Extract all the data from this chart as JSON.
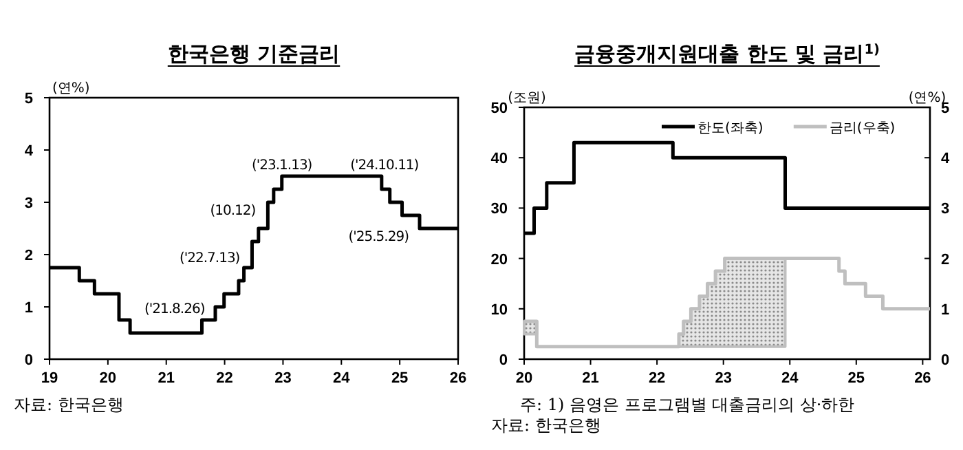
{
  "chart_data": [
    {
      "type": "step",
      "title": "한국은행 기준금리",
      "ylabel": "(연%)",
      "xlim": [
        19,
        26
      ],
      "xticks": [
        19,
        20,
        21,
        22,
        23,
        24,
        25,
        26
      ],
      "ylim": [
        0,
        5
      ],
      "yticks": [
        0,
        1,
        2,
        3,
        4,
        5
      ],
      "x": [
        19,
        19.51,
        19.77,
        20.19,
        20.38,
        21.61,
        21.84,
        21.99,
        22.24,
        22.33,
        22.47,
        22.58,
        22.74,
        22.84,
        22.98,
        24.69,
        24.83,
        25.04,
        25.34,
        26
      ],
      "series": [
        {
          "color": "#000000",
          "values": [
            1.75,
            1.5,
            1.25,
            0.75,
            0.5,
            0.75,
            1.0,
            1.25,
            1.5,
            1.75,
            2.25,
            2.5,
            3.0,
            3.25,
            3.5,
            3.25,
            3.0,
            2.75,
            2.5,
            2.5
          ]
        }
      ],
      "annotations": [
        {
          "text": "('21.8.26)",
          "x": 21.61,
          "y": 0.75
        },
        {
          "text": "('22.7.13)",
          "x": 22.47,
          "y": 2.25
        },
        {
          "text": "(10.12)",
          "x": 22.74,
          "y": 3.0
        },
        {
          "text": "('23.1.13)",
          "x": 22.98,
          "y": 3.5
        },
        {
          "text": "('24.10.11)",
          "x": 24.69,
          "y": 3.5
        },
        {
          "text": "('25.5.29)",
          "x": 25.34,
          "y": 2.5
        },
        "자료: 한국은행"
      ]
    },
    {
      "type": "step",
      "title": "금융중개지원대출 한도 및 금리$^{1)}$",
      "ylabel": "(조원)",
      "y2label": "(연%)",
      "xlim": [
        20,
        26.11
      ],
      "xticks": [
        20,
        21,
        22,
        23,
        24,
        25,
        26
      ],
      "ylim": [
        0,
        50
      ],
      "yticks": [
        0,
        10,
        20,
        30,
        40,
        50
      ],
      "y2lim": [
        0,
        5
      ],
      "y2ticks": [
        0,
        1,
        2,
        3,
        4,
        5
      ],
      "legend": "top right",
      "series": [
        {
          "name": "한도(좌축)",
          "color": "#000000",
          "x": [
            20,
            20.15,
            20.34,
            20.75,
            22.24,
            23.93,
            26.11
          ],
          "values": [
            25,
            30,
            35,
            43,
            40,
            30,
            30
          ]
        },
        {
          "name": "금리(우축)",
          "color": "#bfbfbf",
          "axis": "y2",
          "x": [
            20,
            20.19,
            22.33,
            22.33,
            22.4,
            22.51,
            22.64,
            22.76,
            22.88,
            23.02,
            23.93,
            24.74,
            24.83,
            25.14,
            25.4,
            26.11
          ],
          "values": [
            0.75,
            0.25,
            0.25,
            0.5,
            0.75,
            1.0,
            1.25,
            1.5,
            1.75,
            2.0,
            2.0,
            1.75,
            1.5,
            1.25,
            1.0,
            1.0
          ],
          "lower": [
            0.5,
            0.5,
            null,
            0.25,
            0.25,
            0.25,
            0.25,
            0.25,
            0.25,
            0.25,
            0.25,
            null,
            null,
            null,
            null,
            null
          ],
          "upper": [
            0.75,
            0.75,
            null,
            0.5,
            0.75,
            1.0,
            1.25,
            1.5,
            1.75,
            2.0,
            2.0,
            null,
            null,
            null,
            null,
            null
          ]
        }
      ],
      "annotations": [
        "주: 1) 음영은 프로그램별 대출금리의 상·하한",
        "자료: 한국은행"
      ]
    }
  ]
}
